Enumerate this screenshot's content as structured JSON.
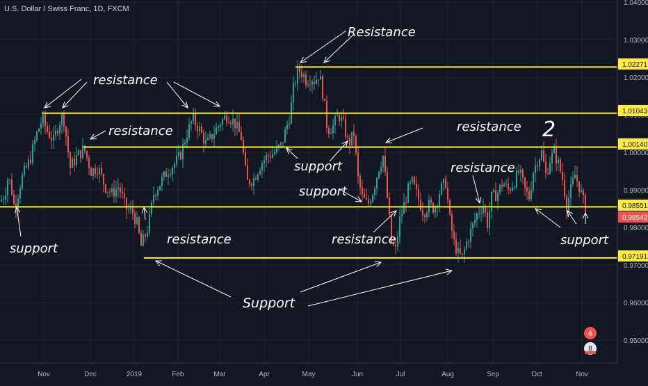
{
  "symbol_title": "U.S. Dollar / Swiss Franc, 1D, FXCM",
  "colors": {
    "background": "#131722",
    "grid": "#1f2430",
    "up": "#26a69a",
    "down": "#ef5350",
    "level": "#ffeb3b",
    "axis_text": "#b2b5be",
    "annotation": "#ffffff",
    "last_price": "#ef5350"
  },
  "axis": {
    "y_ticks": [
      "1.04000",
      "1.03000",
      "1.02000",
      "1.01000",
      "1.00000",
      "0.99000",
      "0.98000",
      "0.97000",
      "0.96000",
      "0.95000"
    ],
    "x_ticks": [
      "Nov",
      "Dec",
      "2019",
      "Feb",
      "Mar",
      "Apr",
      "May",
      "Jun",
      "Jul",
      "Aug",
      "Sep",
      "Oct",
      "Nov"
    ]
  },
  "price_labels": [
    {
      "text": "1.02271",
      "kind": "level"
    },
    {
      "text": "1.01043",
      "kind": "level"
    },
    {
      "text": "1.00140",
      "kind": "level"
    },
    {
      "text": "0.98551",
      "kind": "level"
    },
    {
      "text": "0.98542",
      "kind": "last"
    },
    {
      "text": "0.97191",
      "kind": "level"
    }
  ],
  "annotations": [
    "Resistance",
    "resistance",
    "resistance",
    "support",
    "support",
    "resistance",
    "support",
    "resistance",
    "resistance",
    "resistance",
    "support",
    "Support",
    "2"
  ],
  "badges": [
    "6",
    "8"
  ],
  "chart_data": {
    "type": "candlestick",
    "ylim": [
      0.945,
      1.041
    ],
    "x_tick_labels": [
      "Nov",
      "Dec",
      "2019",
      "Feb",
      "Mar",
      "Apr",
      "May",
      "Jun",
      "Jul",
      "Aug",
      "Sep",
      "Oct",
      "Nov"
    ],
    "horizontal_levels": [
      1.02271,
      1.01043,
      1.0014,
      0.98551,
      0.97191
    ],
    "last_price": 0.98542,
    "close_path": [
      [
        0,
        0.987
      ],
      [
        6,
        0.989
      ],
      [
        10,
        0.993
      ],
      [
        14,
        0.992
      ],
      [
        20,
        0.985
      ],
      [
        30,
        0.993
      ],
      [
        42,
        0.998
      ],
      [
        52,
        1.005
      ],
      [
        60,
        1.009
      ],
      [
        66,
        1.006
      ],
      [
        76,
        1.003
      ],
      [
        84,
        1.008
      ],
      [
        90,
        1.01
      ],
      [
        100,
        0.996
      ],
      [
        110,
        0.999
      ],
      [
        120,
        1.001
      ],
      [
        130,
        0.995
      ],
      [
        140,
        0.996
      ],
      [
        150,
        0.991
      ],
      [
        160,
        0.989
      ],
      [
        170,
        0.991
      ],
      [
        180,
        0.985
      ],
      [
        190,
        0.984
      ],
      [
        196,
        0.981
      ],
      [
        202,
        0.975
      ],
      [
        206,
        0.977
      ],
      [
        212,
        0.98
      ],
      [
        220,
        0.989
      ],
      [
        230,
        0.992
      ],
      [
        240,
        0.995
      ],
      [
        250,
        0.997
      ],
      [
        258,
        0.999
      ],
      [
        266,
        1.004
      ],
      [
        276,
        1.009
      ],
      [
        286,
        1.006
      ],
      [
        296,
        1.002
      ],
      [
        306,
        1.005
      ],
      [
        316,
        1.008
      ],
      [
        326,
        1.01
      ],
      [
        336,
        1.008
      ],
      [
        346,
        1.004
      ],
      [
        354,
        0.992
      ],
      [
        364,
        0.993
      ],
      [
        374,
        0.997
      ],
      [
        384,
        0.999
      ],
      [
        394,
        1.0
      ],
      [
        404,
        1.002
      ],
      [
        410,
        1.006
      ],
      [
        416,
        1.01
      ],
      [
        422,
        1.018
      ],
      [
        428,
        1.022
      ],
      [
        434,
        1.021
      ],
      [
        440,
        1.019
      ],
      [
        446,
        1.02
      ],
      [
        452,
        1.019
      ],
      [
        458,
        1.021
      ],
      [
        464,
        1.015
      ],
      [
        470,
        1.006
      ],
      [
        478,
        1.007
      ],
      [
        486,
        1.01
      ],
      [
        494,
        1.007
      ],
      [
        500,
        1.002
      ],
      [
        508,
        1.005
      ],
      [
        514,
        0.993
      ],
      [
        520,
        0.988
      ],
      [
        528,
        0.986
      ],
      [
        536,
        0.99
      ],
      [
        544,
        0.996
      ],
      [
        550,
        0.999
      ],
      [
        556,
        0.988
      ],
      [
        562,
        0.976
      ],
      [
        568,
        0.974
      ],
      [
        574,
        0.982
      ],
      [
        580,
        0.986
      ],
      [
        586,
        0.99
      ],
      [
        592,
        0.992
      ],
      [
        600,
        0.988
      ],
      [
        608,
        0.984
      ],
      [
        616,
        0.986
      ],
      [
        624,
        0.985
      ],
      [
        632,
        0.99
      ],
      [
        640,
        0.992
      ],
      [
        646,
        0.982
      ],
      [
        652,
        0.976
      ],
      [
        658,
        0.973
      ],
      [
        664,
        0.972
      ],
      [
        670,
        0.976
      ],
      [
        678,
        0.98
      ],
      [
        686,
        0.984
      ],
      [
        694,
        0.986
      ],
      [
        700,
        0.981
      ],
      [
        706,
        0.988
      ],
      [
        714,
        0.989
      ],
      [
        722,
        0.992
      ],
      [
        730,
        0.99
      ],
      [
        738,
        0.992
      ],
      [
        746,
        0.995
      ],
      [
        754,
        0.99
      ],
      [
        760,
        0.988
      ],
      [
        766,
        0.995
      ],
      [
        772,
        0.998
      ],
      [
        778,
        1.0
      ],
      [
        784,
        0.994
      ],
      [
        790,
        0.998
      ],
      [
        796,
        1.0
      ],
      [
        802,
        0.997
      ],
      [
        808,
        0.993
      ],
      [
        814,
        0.986
      ],
      [
        820,
        0.99
      ],
      [
        826,
        0.994
      ],
      [
        832,
        0.991
      ],
      [
        838,
        0.987
      ],
      [
        842,
        0.985
      ]
    ]
  }
}
